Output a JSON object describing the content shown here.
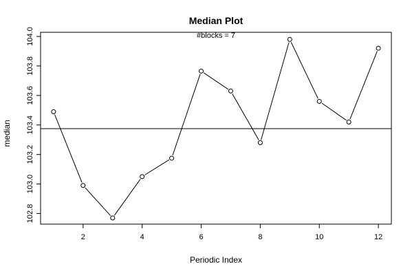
{
  "chart_data": {
    "type": "line",
    "title": "Median Plot",
    "subtitle": "#blocks =  7",
    "xlabel": "Periodic Index",
    "ylabel": "median",
    "x": [
      1,
      2,
      3,
      4,
      5,
      6,
      7,
      8,
      9,
      10,
      11,
      12
    ],
    "series": [
      {
        "values": [
          103.49,
          102.99,
          102.77,
          103.05,
          103.175,
          103.765,
          103.63,
          103.28,
          103.98,
          103.56,
          103.42,
          103.92
        ]
      }
    ],
    "reference_line": 103.375,
    "xlim": [
      0.56,
      12.44
    ],
    "ylim": [
      102.728,
      104.028
    ],
    "xticks": [
      2,
      4,
      6,
      8,
      10,
      12
    ],
    "yticks": [
      102.8,
      103.0,
      103.2,
      103.4,
      103.6,
      103.8,
      104.0
    ],
    "ytick_labels": [
      "102.8",
      "103.0",
      "103.2",
      "103.4",
      "103.6",
      "103.8",
      "104.0"
    ],
    "grid": false,
    "marker": "open-circle",
    "line_color": "#000000"
  }
}
